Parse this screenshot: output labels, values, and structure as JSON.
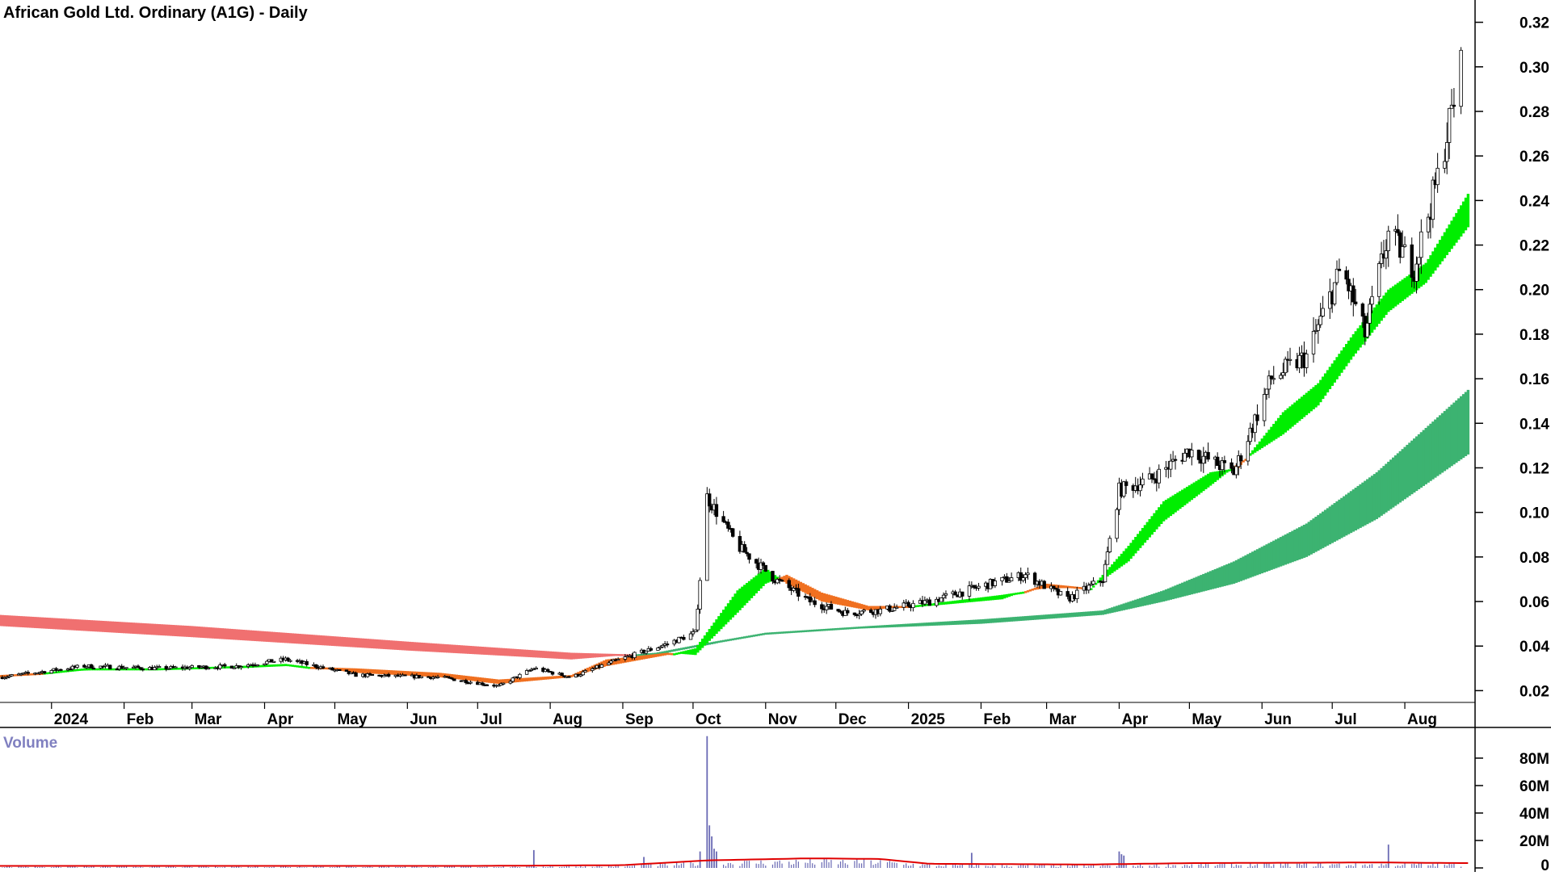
{
  "chart_data": {
    "type": "candlestick",
    "title": "African Gold Ltd. Ordinary (A1G) - Daily",
    "volume_title": "Volume",
    "price_axis": {
      "ticks": [
        "0.02",
        "0.04",
        "0.06",
        "0.08",
        "0.10",
        "0.12",
        "0.14",
        "0.16",
        "0.18",
        "0.20",
        "0.22",
        "0.24",
        "0.26",
        "0.28",
        "0.30",
        "0.32"
      ],
      "ylim": [
        0.01,
        0.33
      ]
    },
    "volume_axis": {
      "ticks": [
        "0",
        "20M",
        "40M",
        "60M",
        "80M"
      ],
      "ylim": [
        0,
        100000000
      ]
    },
    "months": [
      {
        "label": "2024",
        "date": "2024-01-01"
      },
      {
        "label": "Feb",
        "date": "2024-02-01"
      },
      {
        "label": "Mar",
        "date": "2024-03-01"
      },
      {
        "label": "Apr",
        "date": "2024-04-01"
      },
      {
        "label": "May",
        "date": "2024-05-01"
      },
      {
        "label": "Jun",
        "date": "2024-06-01"
      },
      {
        "label": "Jul",
        "date": "2024-07-01"
      },
      {
        "label": "Aug",
        "date": "2024-08-01"
      },
      {
        "label": "Sep",
        "date": "2024-09-01"
      },
      {
        "label": "Oct",
        "date": "2024-10-01"
      },
      {
        "label": "Nov",
        "date": "2024-11-01"
      },
      {
        "label": "Dec",
        "date": "2024-12-01"
      },
      {
        "label": "2025",
        "date": "2025-01-01"
      },
      {
        "label": "Feb",
        "date": "2025-02-01"
      },
      {
        "label": "Mar",
        "date": "2025-03-01"
      },
      {
        "label": "Apr",
        "date": "2025-04-01"
      },
      {
        "label": "May",
        "date": "2025-05-01"
      },
      {
        "label": "Jun",
        "date": "2025-06-01"
      },
      {
        "label": "Jul",
        "date": "2025-07-01"
      },
      {
        "label": "Aug",
        "date": "2025-08-01"
      }
    ],
    "x_range": [
      "2023-12-10",
      "2025-08-31"
    ],
    "price_anchors": [
      {
        "date": "2023-12-10",
        "close": 0.026
      },
      {
        "date": "2024-01-15",
        "close": 0.031
      },
      {
        "date": "2024-02-15",
        "close": 0.03
      },
      {
        "date": "2024-03-20",
        "close": 0.031
      },
      {
        "date": "2024-04-10",
        "close": 0.034
      },
      {
        "date": "2024-05-10",
        "close": 0.027
      },
      {
        "date": "2024-06-15",
        "close": 0.026
      },
      {
        "date": "2024-07-10",
        "close": 0.022
      },
      {
        "date": "2024-07-25",
        "close": 0.03
      },
      {
        "date": "2024-08-10",
        "close": 0.026
      },
      {
        "date": "2024-08-25",
        "close": 0.032
      },
      {
        "date": "2024-09-20",
        "close": 0.041
      },
      {
        "date": "2024-10-02",
        "close": 0.046
      },
      {
        "date": "2024-10-07",
        "close": 0.107
      },
      {
        "date": "2024-10-20",
        "close": 0.085
      },
      {
        "date": "2024-11-05",
        "close": 0.07
      },
      {
        "date": "2024-11-20",
        "close": 0.06
      },
      {
        "date": "2024-12-05",
        "close": 0.055
      },
      {
        "date": "2024-12-20",
        "close": 0.056
      },
      {
        "date": "2025-01-10",
        "close": 0.06
      },
      {
        "date": "2025-02-05",
        "close": 0.068
      },
      {
        "date": "2025-02-20",
        "close": 0.072
      },
      {
        "date": "2025-03-10",
        "close": 0.061
      },
      {
        "date": "2025-03-25",
        "close": 0.07
      },
      {
        "date": "2025-04-01",
        "close": 0.11
      },
      {
        "date": "2025-04-15",
        "close": 0.115
      },
      {
        "date": "2025-05-01",
        "close": 0.128
      },
      {
        "date": "2025-05-20",
        "close": 0.118
      },
      {
        "date": "2025-06-05",
        "close": 0.16
      },
      {
        "date": "2025-06-20",
        "close": 0.17
      },
      {
        "date": "2025-07-05",
        "close": 0.21
      },
      {
        "date": "2025-07-15",
        "close": 0.18
      },
      {
        "date": "2025-07-25",
        "close": 0.225
      },
      {
        "date": "2025-08-05",
        "close": 0.21
      },
      {
        "date": "2025-08-15",
        "close": 0.25
      },
      {
        "date": "2025-08-25",
        "close": 0.3
      }
    ],
    "short_ribbon": [
      {
        "date": "2023-12-10",
        "fast": 0.026,
        "slow": 0.027
      },
      {
        "date": "2024-01-15",
        "fast": 0.03,
        "slow": 0.029
      },
      {
        "date": "2024-02-15",
        "fast": 0.03,
        "slow": 0.03
      },
      {
        "date": "2024-03-20",
        "fast": 0.031,
        "slow": 0.03
      },
      {
        "date": "2024-04-10",
        "fast": 0.032,
        "slow": 0.031
      },
      {
        "date": "2024-05-10",
        "fast": 0.028,
        "slow": 0.03
      },
      {
        "date": "2024-06-15",
        "fast": 0.026,
        "slow": 0.028
      },
      {
        "date": "2024-07-10",
        "fast": 0.023,
        "slow": 0.025
      },
      {
        "date": "2024-08-10",
        "fast": 0.026,
        "slow": 0.027
      },
      {
        "date": "2024-08-25",
        "fast": 0.031,
        "slow": 0.034
      },
      {
        "date": "2024-09-20",
        "fast": 0.036,
        "slow": 0.037
      },
      {
        "date": "2024-10-02",
        "fast": 0.039,
        "slow": 0.036
      },
      {
        "date": "2024-10-20",
        "fast": 0.065,
        "slow": 0.055
      },
      {
        "date": "2024-11-01",
        "fast": 0.075,
        "slow": 0.068
      },
      {
        "date": "2024-11-10",
        "fast": 0.068,
        "slow": 0.072
      },
      {
        "date": "2024-11-25",
        "fast": 0.06,
        "slow": 0.064
      },
      {
        "date": "2024-12-15",
        "fast": 0.056,
        "slow": 0.058
      },
      {
        "date": "2025-01-10",
        "fast": 0.059,
        "slow": 0.058
      },
      {
        "date": "2025-02-10",
        "fast": 0.063,
        "slow": 0.061
      },
      {
        "date": "2025-03-01",
        "fast": 0.066,
        "slow": 0.068
      },
      {
        "date": "2025-03-20",
        "fast": 0.066,
        "slow": 0.066
      },
      {
        "date": "2025-04-05",
        "fast": 0.085,
        "slow": 0.078
      },
      {
        "date": "2025-04-20",
        "fast": 0.105,
        "slow": 0.096
      },
      {
        "date": "2025-05-10",
        "fast": 0.118,
        "slow": 0.112
      },
      {
        "date": "2025-05-22",
        "fast": 0.12,
        "slow": 0.122
      },
      {
        "date": "2025-06-10",
        "fast": 0.145,
        "slow": 0.135
      },
      {
        "date": "2025-06-25",
        "fast": 0.158,
        "slow": 0.148
      },
      {
        "date": "2025-07-10",
        "fast": 0.18,
        "slow": 0.17
      },
      {
        "date": "2025-07-25",
        "fast": 0.2,
        "slow": 0.19
      },
      {
        "date": "2025-08-10",
        "fast": 0.212,
        "slow": 0.203
      },
      {
        "date": "2025-08-28",
        "fast": 0.243,
        "slow": 0.228
      }
    ],
    "long_ribbon": [
      {
        "date": "2023-12-10",
        "fast": 0.049,
        "slow": 0.054
      },
      {
        "date": "2024-03-01",
        "fast": 0.044,
        "slow": 0.049
      },
      {
        "date": "2024-06-01",
        "fast": 0.038,
        "slow": 0.042
      },
      {
        "date": "2024-08-10",
        "fast": 0.034,
        "slow": 0.037
      },
      {
        "date": "2024-09-15",
        "fast": 0.037,
        "slow": 0.036
      },
      {
        "date": "2024-10-10",
        "fast": 0.042,
        "slow": 0.041
      },
      {
        "date": "2024-11-01",
        "fast": 0.046,
        "slow": 0.046
      },
      {
        "date": "2024-12-15",
        "fast": 0.049,
        "slow": 0.048
      },
      {
        "date": "2025-02-01",
        "fast": 0.052,
        "slow": 0.05
      },
      {
        "date": "2025-03-25",
        "fast": 0.056,
        "slow": 0.054
      },
      {
        "date": "2025-04-20",
        "fast": 0.065,
        "slow": 0.06
      },
      {
        "date": "2025-05-20",
        "fast": 0.078,
        "slow": 0.068
      },
      {
        "date": "2025-06-20",
        "fast": 0.095,
        "slow": 0.08
      },
      {
        "date": "2025-07-20",
        "fast": 0.118,
        "slow": 0.097
      },
      {
        "date": "2025-08-28",
        "fast": 0.155,
        "slow": 0.126
      }
    ],
    "volume_spikes": [
      {
        "date": "2024-07-25",
        "value": 13000000
      },
      {
        "date": "2024-09-10",
        "value": 8000000
      },
      {
        "date": "2024-10-04",
        "value": 12000000
      },
      {
        "date": "2024-10-07",
        "value": 96000000
      },
      {
        "date": "2024-10-08",
        "value": 31000000
      },
      {
        "date": "2024-10-09",
        "value": 23000000
      },
      {
        "date": "2024-10-10",
        "value": 14000000
      },
      {
        "date": "2024-10-11",
        "value": 12000000
      },
      {
        "date": "2025-01-28",
        "value": 11000000
      },
      {
        "date": "2025-04-01",
        "value": 12000000
      },
      {
        "date": "2025-04-02",
        "value": 10000000
      },
      {
        "date": "2025-04-03",
        "value": 9000000
      },
      {
        "date": "2025-07-25",
        "value": 17000000
      }
    ],
    "volume_avg": [
      {
        "date": "2023-12-10",
        "value": 1500000
      },
      {
        "date": "2024-07-01",
        "value": 1500000
      },
      {
        "date": "2024-09-01",
        "value": 2000000
      },
      {
        "date": "2024-10-07",
        "value": 5500000
      },
      {
        "date": "2024-11-20",
        "value": 7000000
      },
      {
        "date": "2024-12-20",
        "value": 6500000
      },
      {
        "date": "2025-01-10",
        "value": 3000000
      },
      {
        "date": "2025-03-20",
        "value": 2500000
      },
      {
        "date": "2025-05-01",
        "value": 3500000
      },
      {
        "date": "2025-07-20",
        "value": 4000000
      },
      {
        "date": "2025-08-28",
        "value": 3500000
      }
    ],
    "colors": {
      "short_up": "#00ee00",
      "short_down": "#f07020",
      "long_up": "#3cb371",
      "long_down": "#f07070",
      "candle": "#000000",
      "volume_bar": "#6a6ab4",
      "volume_avg": "#e00000",
      "axis": "#000000"
    }
  }
}
